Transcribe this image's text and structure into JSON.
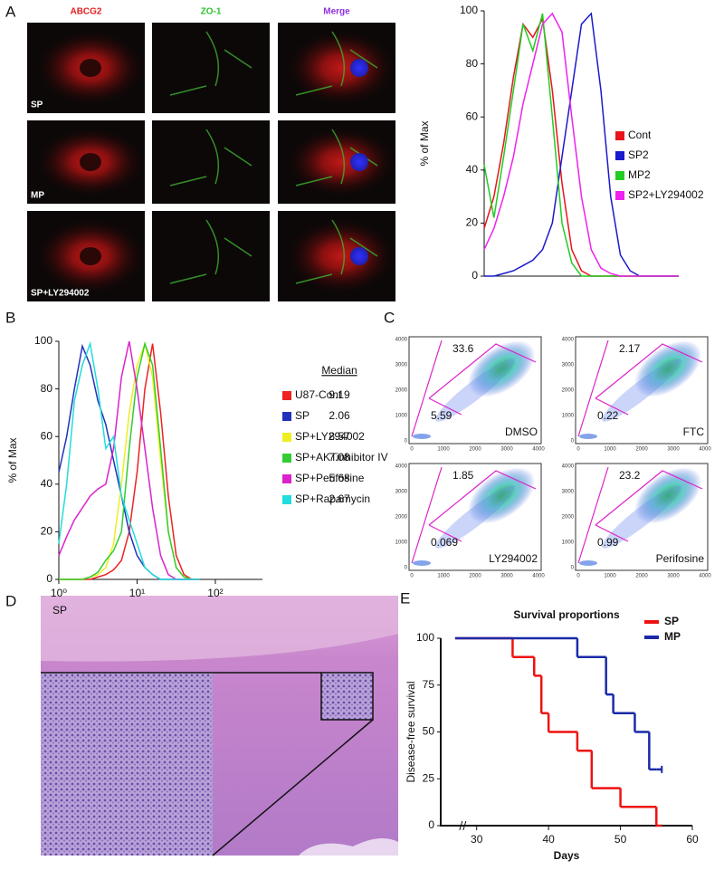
{
  "panel_labels": [
    "A",
    "B",
    "C",
    "D",
    "E"
  ],
  "microscopy": {
    "columns": [
      "ABCG2",
      "ZO-1",
      "Merge"
    ],
    "rows": [
      "SP",
      "MP",
      "SP+LY294002"
    ]
  },
  "histology": {
    "label": "SP"
  },
  "flow": {
    "ticks": [
      0,
      1000,
      2000,
      3000,
      4000
    ],
    "plots": [
      {
        "label": "DMSO",
        "upper": "33.6",
        "lower": "5.59"
      },
      {
        "label": "FTC",
        "upper": "2.17",
        "lower": "0.22"
      },
      {
        "label": "LY294002",
        "upper": "1.85",
        "lower": "0.069"
      },
      {
        "label": "Perifosine",
        "upper": "23.2",
        "lower": "0.99"
      }
    ]
  },
  "chart_data": [
    {
      "type": "line",
      "ylabel": "% of Max",
      "x": [
        0,
        5,
        10,
        15,
        20,
        25,
        30,
        35,
        40,
        45,
        50,
        55,
        60,
        65,
        70,
        75,
        80,
        85,
        90,
        95,
        100
      ],
      "xlim": [
        0,
        100
      ],
      "ylim": [
        0,
        100
      ],
      "yticks": [
        0,
        20,
        40,
        60,
        80,
        100
      ],
      "series": [
        {
          "name": "Cont",
          "color": "#e8141c",
          "values": [
            18,
            30,
            50,
            75,
            95,
            90,
            97,
            70,
            35,
            10,
            2,
            0,
            0,
            0,
            0,
            0,
            0,
            0,
            0,
            0,
            0
          ]
        },
        {
          "name": "SP2",
          "color": "#1a1acc",
          "values": [
            0,
            0,
            1,
            2,
            4,
            6,
            10,
            20,
            45,
            70,
            95,
            99,
            70,
            30,
            8,
            2,
            0,
            0,
            0,
            0,
            0
          ]
        },
        {
          "name": "MP2",
          "color": "#22cc22",
          "values": [
            42,
            22,
            45,
            70,
            95,
            85,
            99,
            60,
            20,
            5,
            0,
            0,
            0,
            0,
            0,
            0,
            0,
            0,
            0,
            0,
            0
          ]
        },
        {
          "name": "SP2+LY294002",
          "color": "#ee22ee",
          "values": [
            10,
            18,
            30,
            45,
            65,
            80,
            95,
            99,
            92,
            60,
            30,
            10,
            3,
            1,
            0,
            0,
            0,
            0,
            0,
            0,
            0
          ]
        }
      ]
    },
    {
      "type": "line",
      "ylabel": "% of Max",
      "xscale": "log",
      "median_header": "Median",
      "x": [
        1,
        1.26,
        1.58,
        2,
        2.51,
        3.16,
        3.98,
        5.01,
        6.31,
        7.94,
        10,
        12.6,
        15.8,
        20,
        25.1,
        31.6,
        39.8,
        50.1,
        63.1
      ],
      "xlim": [
        1,
        400
      ],
      "xticks": [
        {
          "value": 1,
          "label": "10⁰"
        },
        {
          "value": 10,
          "label": "10¹"
        },
        {
          "value": 100,
          "label": "10²"
        }
      ],
      "ylim": [
        0,
        100
      ],
      "yticks": [
        0,
        20,
        40,
        60,
        80,
        100
      ],
      "series": [
        {
          "name": "U87-Cont",
          "color": "#ee2222",
          "median": 9.19,
          "values": [
            0,
            0,
            0,
            0,
            0,
            1,
            2,
            4,
            8,
            20,
            45,
            80,
            99,
            70,
            35,
            10,
            2,
            0,
            0
          ]
        },
        {
          "name": "SP",
          "color": "#2233bb",
          "median": 2.06,
          "values": [
            45,
            60,
            80,
            98,
            90,
            75,
            65,
            50,
            35,
            20,
            10,
            5,
            2,
            0,
            0,
            0,
            0,
            0,
            0
          ]
        },
        {
          "name": "SP+LY294002",
          "color": "#eeee22",
          "median": 8.57,
          "values": [
            0,
            0,
            0,
            0,
            1,
            2,
            5,
            15,
            40,
            70,
            90,
            99,
            85,
            50,
            20,
            5,
            1,
            0,
            0
          ]
        },
        {
          "name": "SP+AKTinhibitor IV",
          "color": "#33cc33",
          "median": 7.08,
          "values": [
            0,
            0,
            0,
            0,
            1,
            3,
            8,
            12,
            20,
            55,
            85,
            99,
            90,
            55,
            20,
            5,
            1,
            0,
            0
          ]
        },
        {
          "name": "SP+Perifosine",
          "color": "#dd22cc",
          "median": 5.68,
          "values": [
            10,
            18,
            25,
            30,
            35,
            38,
            40,
            55,
            85,
            100,
            80,
            55,
            30,
            10,
            2,
            0,
            0,
            0,
            0
          ]
        },
        {
          "name": "SP+Rapamycin",
          "color": "#22dddd",
          "median": 2.67,
          "values": [
            15,
            40,
            75,
            90,
            99,
            80,
            55,
            60,
            35,
            25,
            15,
            5,
            2,
            0,
            0,
            0,
            0,
            0,
            0
          ]
        }
      ]
    },
    {
      "type": "step",
      "title": "Survival proportions",
      "ylabel": "Disease-free survival",
      "xlabel": "Days",
      "xlim": [
        25,
        60
      ],
      "xticks": [
        30,
        40,
        50,
        60
      ],
      "ylim": [
        0,
        100
      ],
      "yticks": [
        0,
        25,
        50,
        75,
        100
      ],
      "series": [
        {
          "name": "SP",
          "color": "#ee1111",
          "x": [
            27,
            35,
            38,
            39,
            40,
            44,
            46,
            50,
            55
          ],
          "values": [
            100,
            90,
            80,
            60,
            50,
            40,
            20,
            10,
            0
          ]
        },
        {
          "name": "MP",
          "color": "#1a2aaa",
          "x": [
            27,
            44,
            48,
            49,
            52,
            54,
            55
          ],
          "values": [
            100,
            90,
            70,
            60,
            50,
            30,
            30
          ]
        }
      ]
    }
  ]
}
